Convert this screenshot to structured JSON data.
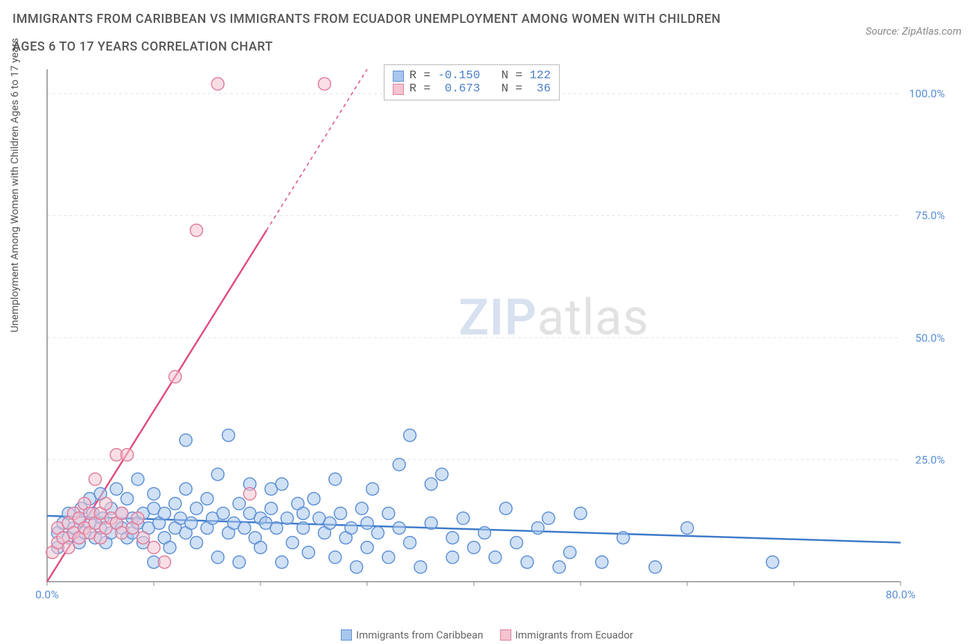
{
  "header": {
    "title": "IMMIGRANTS FROM CARIBBEAN VS IMMIGRANTS FROM ECUADOR UNEMPLOYMENT AMONG WOMEN WITH CHILDREN AGES 6 TO 17 YEARS CORRELATION CHART",
    "source": "Source: ZipAtlas.com"
  },
  "chart": {
    "type": "scatter",
    "y_axis_label": "Unemployment Among Women with Children Ages 6 to 17 years",
    "xlim": [
      0,
      80
    ],
    "ylim": [
      0,
      105
    ],
    "x_ticks": [
      0,
      10,
      20,
      30,
      40,
      50,
      60,
      70,
      80
    ],
    "x_tick_labels": [
      "0.0%",
      "",
      "",
      "",
      "",
      "",
      "",
      "",
      "80.0%"
    ],
    "y_ticks": [
      25,
      50,
      75,
      100
    ],
    "y_tick_labels": [
      "25.0%",
      "50.0%",
      "75.0%",
      "100.0%"
    ],
    "grid_color": "#e0e0e0",
    "axis_color": "#888888",
    "background_color": "#ffffff",
    "tick_label_color": "#5a8fd6",
    "marker_radius": 9,
    "marker_stroke_width": 1.5,
    "trend_line_width": 2.5,
    "watermark": {
      "zip": "ZIP",
      "atlas": "atlas"
    },
    "series": [
      {
        "name": "Immigrants from Caribbean",
        "key": "caribbean",
        "fill_color": "#a9c7ec",
        "stroke_color": "#5a8fd6",
        "fill_opacity": 0.55,
        "trend_color": "#3b78c9",
        "trend": {
          "x1": 0,
          "y1": 13.5,
          "x2": 80,
          "y2": 8.0
        },
        "stats": {
          "R": "-0.150",
          "N": "122"
        },
        "points": [
          [
            1,
            7
          ],
          [
            1,
            10
          ],
          [
            1.5,
            12
          ],
          [
            2,
            9
          ],
          [
            2,
            14
          ],
          [
            2.5,
            11
          ],
          [
            3,
            8
          ],
          [
            3,
            13
          ],
          [
            3.2,
            15
          ],
          [
            3.5,
            10
          ],
          [
            4,
            12
          ],
          [
            4,
            17
          ],
          [
            4.3,
            14
          ],
          [
            4.5,
            9
          ],
          [
            5,
            11
          ],
          [
            5,
            18
          ],
          [
            5.2,
            13
          ],
          [
            5.5,
            8
          ],
          [
            6,
            10
          ],
          [
            6,
            15
          ],
          [
            6.5,
            12
          ],
          [
            6.5,
            19
          ],
          [
            7,
            11
          ],
          [
            7,
            14
          ],
          [
            7.5,
            9
          ],
          [
            7.5,
            17
          ],
          [
            8,
            13
          ],
          [
            8,
            10
          ],
          [
            8.5,
            12
          ],
          [
            8.5,
            21
          ],
          [
            9,
            14
          ],
          [
            9,
            8
          ],
          [
            9.5,
            11
          ],
          [
            10,
            4
          ],
          [
            10,
            15
          ],
          [
            10,
            18
          ],
          [
            10.5,
            12
          ],
          [
            11,
            9
          ],
          [
            11,
            14
          ],
          [
            11.5,
            7
          ],
          [
            12,
            11
          ],
          [
            12,
            16
          ],
          [
            12.5,
            13
          ],
          [
            13,
            10
          ],
          [
            13,
            19
          ],
          [
            13,
            29
          ],
          [
            13.5,
            12
          ],
          [
            14,
            8
          ],
          [
            14,
            15
          ],
          [
            15,
            11
          ],
          [
            15,
            17
          ],
          [
            15.5,
            13
          ],
          [
            16,
            5
          ],
          [
            16,
            22
          ],
          [
            16.5,
            14
          ],
          [
            17,
            10
          ],
          [
            17,
            30
          ],
          [
            17.5,
            12
          ],
          [
            18,
            4
          ],
          [
            18,
            16
          ],
          [
            18.5,
            11
          ],
          [
            19,
            14
          ],
          [
            19,
            20
          ],
          [
            19.5,
            9
          ],
          [
            20,
            13
          ],
          [
            20,
            7
          ],
          [
            20.5,
            12
          ],
          [
            21,
            15
          ],
          [
            21,
            19
          ],
          [
            21.5,
            11
          ],
          [
            22,
            4
          ],
          [
            22,
            20
          ],
          [
            22.5,
            13
          ],
          [
            23,
            8
          ],
          [
            23.5,
            16
          ],
          [
            24,
            11
          ],
          [
            24,
            14
          ],
          [
            24.5,
            6
          ],
          [
            25,
            17
          ],
          [
            25.5,
            13
          ],
          [
            26,
            10
          ],
          [
            26.5,
            12
          ],
          [
            27,
            5
          ],
          [
            27,
            21
          ],
          [
            27.5,
            14
          ],
          [
            28,
            9
          ],
          [
            28.5,
            11
          ],
          [
            29,
            3
          ],
          [
            29.5,
            15
          ],
          [
            30,
            12
          ],
          [
            30,
            7
          ],
          [
            30.5,
            19
          ],
          [
            31,
            10
          ],
          [
            32,
            5
          ],
          [
            32,
            14
          ],
          [
            33,
            11
          ],
          [
            33,
            24
          ],
          [
            34,
            30
          ],
          [
            34,
            8
          ],
          [
            35,
            3
          ],
          [
            36,
            12
          ],
          [
            36,
            20
          ],
          [
            37,
            22
          ],
          [
            38,
            5
          ],
          [
            38,
            9
          ],
          [
            39,
            13
          ],
          [
            40,
            7
          ],
          [
            41,
            10
          ],
          [
            42,
            5
          ],
          [
            43,
            15
          ],
          [
            44,
            8
          ],
          [
            45,
            4
          ],
          [
            46,
            11
          ],
          [
            47,
            13
          ],
          [
            48,
            3
          ],
          [
            49,
            6
          ],
          [
            50,
            14
          ],
          [
            52,
            4
          ],
          [
            54,
            9
          ],
          [
            57,
            3
          ],
          [
            60,
            11
          ],
          [
            68,
            4
          ]
        ]
      },
      {
        "name": "Immigrants from Ecuador",
        "key": "ecuador",
        "fill_color": "#f4c4d0",
        "stroke_color": "#e07a9a",
        "fill_opacity": 0.55,
        "trend_color": "#e24a7a",
        "trend_dashed_above": 72,
        "trend": {
          "x1": 0,
          "y1": 0,
          "x2": 30,
          "y2": 105
        },
        "stats": {
          "R": "0.673",
          "N": "36"
        },
        "points": [
          [
            0.5,
            6
          ],
          [
            1,
            8
          ],
          [
            1,
            11
          ],
          [
            1.5,
            9
          ],
          [
            2,
            12
          ],
          [
            2,
            7
          ],
          [
            2.5,
            10
          ],
          [
            2.5,
            14
          ],
          [
            3,
            9
          ],
          [
            3,
            13
          ],
          [
            3.5,
            11
          ],
          [
            3.5,
            16
          ],
          [
            4,
            10
          ],
          [
            4,
            14
          ],
          [
            4.5,
            12
          ],
          [
            4.5,
            21
          ],
          [
            5,
            9
          ],
          [
            5,
            14
          ],
          [
            5.5,
            11
          ],
          [
            5.5,
            16
          ],
          [
            6,
            13
          ],
          [
            6.5,
            26
          ],
          [
            6.5,
            12
          ],
          [
            7,
            10
          ],
          [
            7,
            14
          ],
          [
            7.5,
            26
          ],
          [
            8,
            11
          ],
          [
            8.5,
            13
          ],
          [
            9,
            9
          ],
          [
            10,
            7
          ],
          [
            11,
            4
          ],
          [
            12,
            42
          ],
          [
            14,
            72
          ],
          [
            16,
            102
          ],
          [
            19,
            18
          ],
          [
            26,
            102
          ]
        ]
      }
    ],
    "legend_labels": {
      "caribbean": "Immigrants from Caribbean",
      "ecuador": "Immigrants from Ecuador"
    },
    "stats_box_labels": {
      "R": "R =",
      "N": "N ="
    }
  }
}
